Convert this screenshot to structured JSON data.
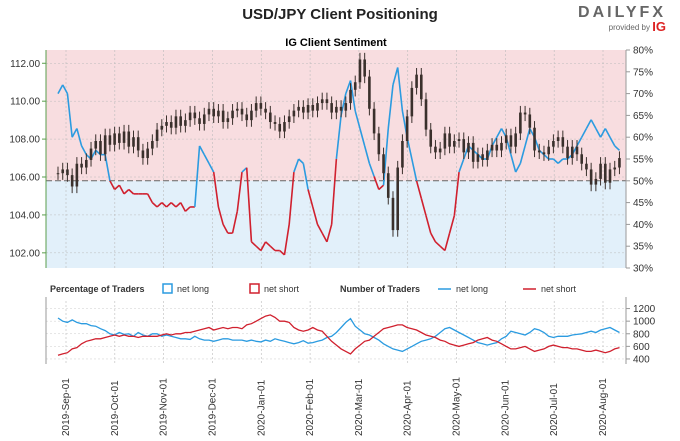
{
  "header": {
    "title": "USD/JPY Client Positioning",
    "logo_main": "DAILYFX",
    "logo_sub": "provided by",
    "logo_ig": "IG"
  },
  "colors": {
    "long": "#2b9be0",
    "short": "#d0202e",
    "price": "#3a302c",
    "pink_zone": "#f8dde0",
    "blue_zone": "#e2f0fa",
    "axis_green": "#5a9e4c"
  },
  "chart_data": [
    {
      "type": "line",
      "title": "IG Client Sentiment",
      "left_axis": {
        "ticks": [
          "112.00",
          "110.00",
          "108.00",
          "106.00",
          "104.00",
          "102.00"
        ],
        "ylim": [
          101.2,
          112.7
        ]
      },
      "right_axis": {
        "ticks": [
          "80%",
          "75%",
          "70%",
          "65%",
          "60%",
          "55%",
          "50%",
          "45%",
          "40%",
          "35%",
          "30%"
        ],
        "ylim": [
          30,
          80
        ]
      },
      "reference_line": 50,
      "series": [
        {
          "kind": "price",
          "values": [
            106.2,
            106.4,
            106.1,
            105.5,
            106.7,
            106.5,
            106.9,
            107.5,
            107.9,
            107.2,
            108.2,
            107.7,
            108.3,
            107.8,
            108.4,
            107.6,
            108.1,
            107.4,
            107.0,
            107.5,
            107.9,
            108.5,
            108.7,
            108.9,
            108.6,
            109.2,
            108.7,
            109.0,
            109.4,
            109.1,
            108.8,
            109.3,
            109.6,
            109.2,
            109.5,
            108.9,
            109.1,
            109.5,
            109.6,
            109.3,
            109.0,
            109.5,
            109.9,
            109.6,
            109.4,
            108.9,
            108.8,
            108.4,
            108.9,
            109.2,
            109.5,
            109.7,
            109.4,
            109.8,
            109.5,
            109.9,
            110.1,
            109.9,
            109.4,
            109.7,
            109.5,
            109.9,
            110.6,
            111.0,
            112.2,
            111.3,
            109.6,
            108.3,
            107.2,
            106.2,
            104.9,
            103.2,
            106.5,
            107.9,
            109.2,
            110.7,
            111.4,
            110.1,
            108.5,
            107.6,
            107.3,
            107.5,
            108.3,
            107.6,
            107.9,
            108.0,
            107.3,
            107.8,
            106.8,
            107.2,
            106.9,
            107.4,
            107.7,
            107.4,
            107.8,
            108.2,
            107.6,
            108.3,
            109.4,
            109.3,
            108.6,
            107.4,
            107.3,
            107.2,
            107.6,
            107.9,
            108.1,
            107.6,
            107.0,
            107.6,
            107.2,
            106.7,
            106.4,
            105.6,
            105.9,
            106.7,
            105.7,
            106.4,
            106.5,
            107.0
          ]
        },
        {
          "kind": "net_long_pct",
          "values": [
            70,
            72,
            70,
            60,
            62,
            58,
            56,
            55,
            57,
            56,
            56,
            50,
            48,
            49,
            47,
            48,
            47,
            47,
            47,
            47,
            45,
            44,
            45,
            44,
            45,
            44,
            45,
            43,
            44,
            44,
            58,
            56,
            54,
            52,
            44,
            40,
            38,
            38,
            43,
            52,
            53,
            36,
            35,
            34,
            36,
            35,
            34,
            34,
            33,
            40,
            52,
            55,
            54,
            48,
            44,
            40,
            38,
            36,
            40,
            55,
            65,
            70,
            73,
            66,
            62,
            58,
            54,
            51,
            48,
            49,
            62,
            72,
            76,
            66,
            60,
            55,
            50,
            46,
            42,
            38,
            36,
            35,
            34,
            38,
            42,
            52,
            55,
            58,
            57,
            56,
            55,
            55,
            58,
            60,
            62,
            60,
            56,
            52,
            54,
            58,
            62,
            60,
            57,
            56,
            55,
            55,
            54,
            55,
            55,
            56,
            58,
            60,
            62,
            64,
            62,
            60,
            62,
            60,
            58,
            57
          ]
        }
      ]
    },
    {
      "type": "line",
      "right_axis": {
        "ticks": [
          "1200",
          "1000",
          "800",
          "600",
          "400"
        ],
        "ylim": [
          320,
          1320
        ]
      },
      "series": [
        {
          "kind": "net_long_count",
          "values": [
            1050,
            1000,
            980,
            1020,
            980,
            960,
            960,
            930,
            920,
            880,
            850,
            800,
            780,
            820,
            790,
            800,
            760,
            820,
            780,
            760,
            800,
            800,
            760,
            780,
            760,
            740,
            720,
            720,
            710,
            760,
            720,
            700,
            700,
            680,
            700,
            720,
            720,
            700,
            700,
            700,
            680,
            700,
            680,
            670,
            700,
            680,
            720,
            700,
            680,
            660,
            640,
            660,
            690,
            650,
            660,
            680,
            700,
            740,
            760,
            820,
            900,
            980,
            1040,
            920,
            860,
            800,
            780,
            740,
            700,
            640,
            600,
            560,
            540,
            520,
            560,
            600,
            640,
            680,
            700,
            720,
            760,
            820,
            880,
            900,
            860,
            820,
            780,
            740,
            700,
            660,
            640,
            620,
            640,
            660,
            720,
            760,
            840,
            820,
            800,
            780,
            820,
            880,
            860,
            820,
            760,
            740,
            760,
            760,
            760,
            780,
            790,
            800,
            820,
            840,
            820,
            860,
            880,
            900,
            860,
            820
          ]
        },
        {
          "kind": "net_short_count",
          "values": [
            460,
            480,
            500,
            560,
            580,
            640,
            680,
            700,
            720,
            720,
            740,
            760,
            780,
            760,
            780,
            760,
            760,
            740,
            760,
            760,
            760,
            760,
            780,
            800,
            780,
            800,
            800,
            820,
            820,
            840,
            860,
            880,
            900,
            860,
            880,
            900,
            880,
            900,
            900,
            880,
            940,
            960,
            1000,
            1040,
            1080,
            1100,
            1060,
            1000,
            1000,
            980,
            900,
            860,
            840,
            860,
            900,
            860,
            840,
            760,
            680,
            620,
            560,
            520,
            480,
            560,
            620,
            680,
            700,
            760,
            820,
            880,
            900,
            920,
            940,
            940,
            900,
            880,
            860,
            820,
            780,
            760,
            740,
            700,
            680,
            640,
            620,
            600,
            620,
            640,
            660,
            700,
            720,
            740,
            700,
            680,
            640,
            600,
            560,
            560,
            580,
            600,
            560,
            520,
            540,
            560,
            600,
            620,
            600,
            580,
            580,
            560,
            560,
            540,
            520,
            520,
            540,
            520,
            500,
            520,
            560,
            580
          ]
        }
      ]
    },
    {
      "type": "line",
      "x_axis": {
        "ticks": [
          "2019-Sep-01",
          "2019-Oct-01",
          "2019-Nov-01",
          "2019-Dec-01",
          "2020-Jan-01",
          "2020-Feb-01",
          "2020-Mar-01",
          "2020-Apr-01",
          "2020-May-01",
          "2020-Jun-01",
          "2020-Jul-01",
          "2020-Aug-01"
        ]
      }
    }
  ],
  "legend_top": {
    "label_pct": "Percentage of Traders",
    "long": "net long",
    "short": "net short",
    "label_num": "Number of Traders",
    "long2": "net long",
    "short2": "net short"
  }
}
